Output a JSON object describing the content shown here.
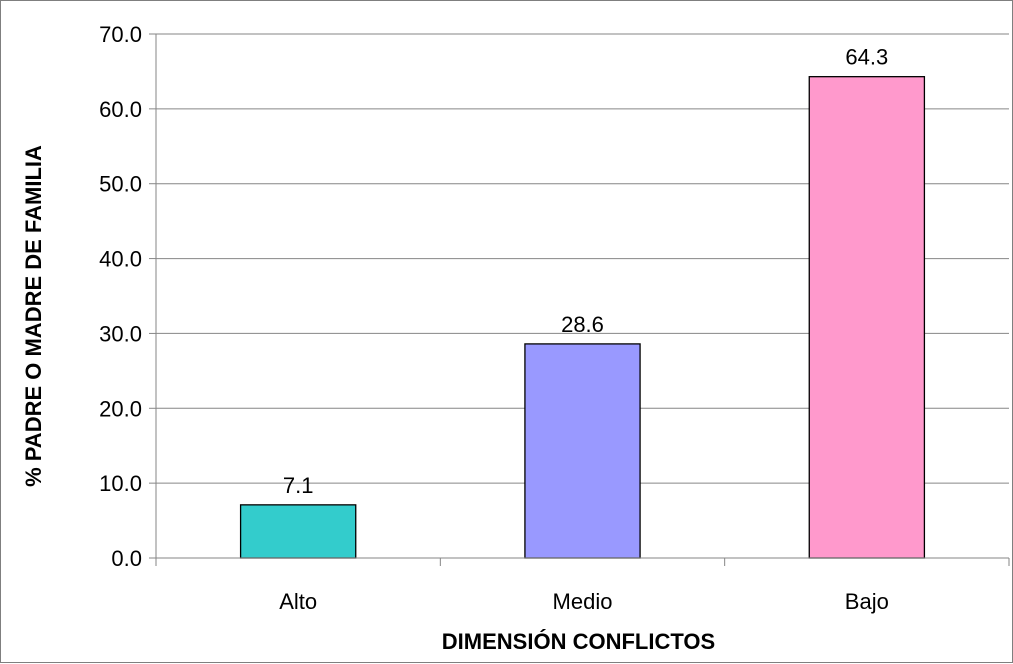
{
  "chart_data": {
    "type": "bar",
    "title": "",
    "xlabel": "DIMENSIÓN CONFLICTOS",
    "ylabel": "% PADRE O MADRE DE FAMILIA",
    "categories": [
      "Alto",
      "Medio",
      "Bajo"
    ],
    "values": [
      7.1,
      28.6,
      64.3
    ],
    "data_labels": [
      "7.1",
      "28.6",
      "64.3"
    ],
    "bar_colors": [
      "#33CCCC",
      "#9999FF",
      "#FF99CC"
    ],
    "ylim": [
      0,
      70
    ],
    "yticks": [
      "0.0",
      "10.0",
      "20.0",
      "30.0",
      "40.0",
      "50.0",
      "60.0",
      "70.0"
    ],
    "grid": true,
    "legend": "none"
  }
}
